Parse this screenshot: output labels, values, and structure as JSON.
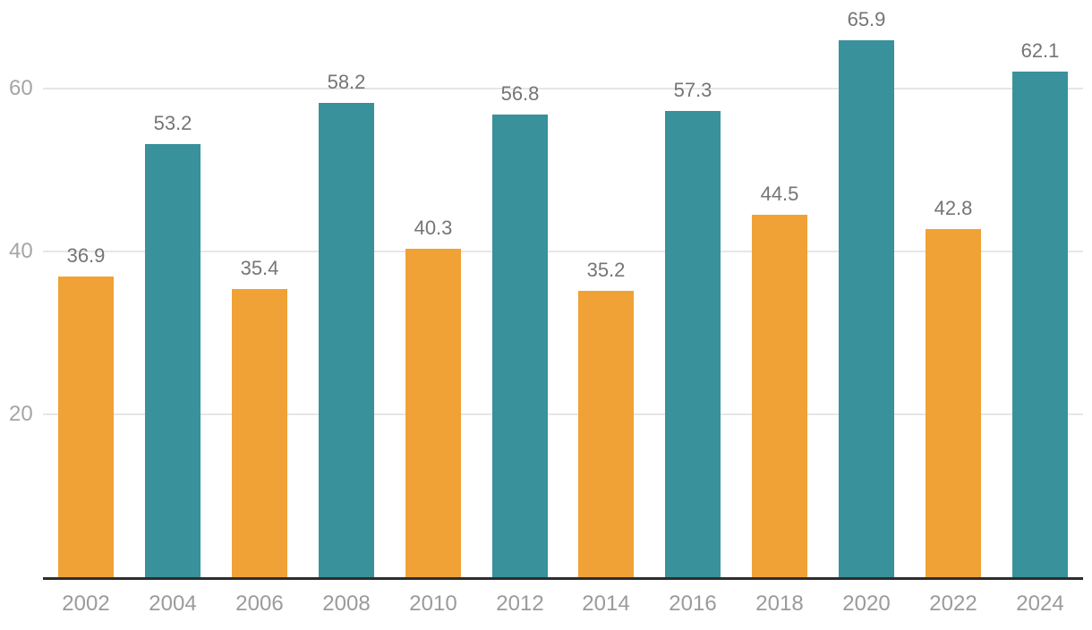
{
  "chart_data": {
    "type": "bar",
    "title": "",
    "xlabel": "",
    "ylabel": "",
    "categories": [
      "2002",
      "2004",
      "2006",
      "2008",
      "2010",
      "2012",
      "2014",
      "2016",
      "2018",
      "2020",
      "2022",
      "2024"
    ],
    "values": [
      36.9,
      53.2,
      35.4,
      58.2,
      40.3,
      56.8,
      35.2,
      57.3,
      44.5,
      65.9,
      42.8,
      62.1
    ],
    "value_labels": [
      "36.9",
      "53.2",
      "35.4",
      "58.2",
      "40.3",
      "56.8",
      "35.2",
      "57.3",
      "44.5",
      "65.9",
      "42.8",
      "62.1"
    ],
    "yticks": [
      "20",
      "40",
      "60"
    ],
    "ytick_values": [
      20,
      40,
      60
    ],
    "ylim": [
      0,
      71
    ],
    "grid": true,
    "legend": "none",
    "data_labels_shown": true,
    "bar_color_pattern": "alternating"
  },
  "colors": {
    "bar_orange": "#F0A236",
    "bar_teal": "#38919B",
    "gridline": "#E6E6E6",
    "axis_line": "#2D2D2D",
    "y_tick_label": "#A5A5A5",
    "x_tick_label": "#9B9B9B",
    "data_label": "#757575",
    "background": "#FFFFFF"
  }
}
